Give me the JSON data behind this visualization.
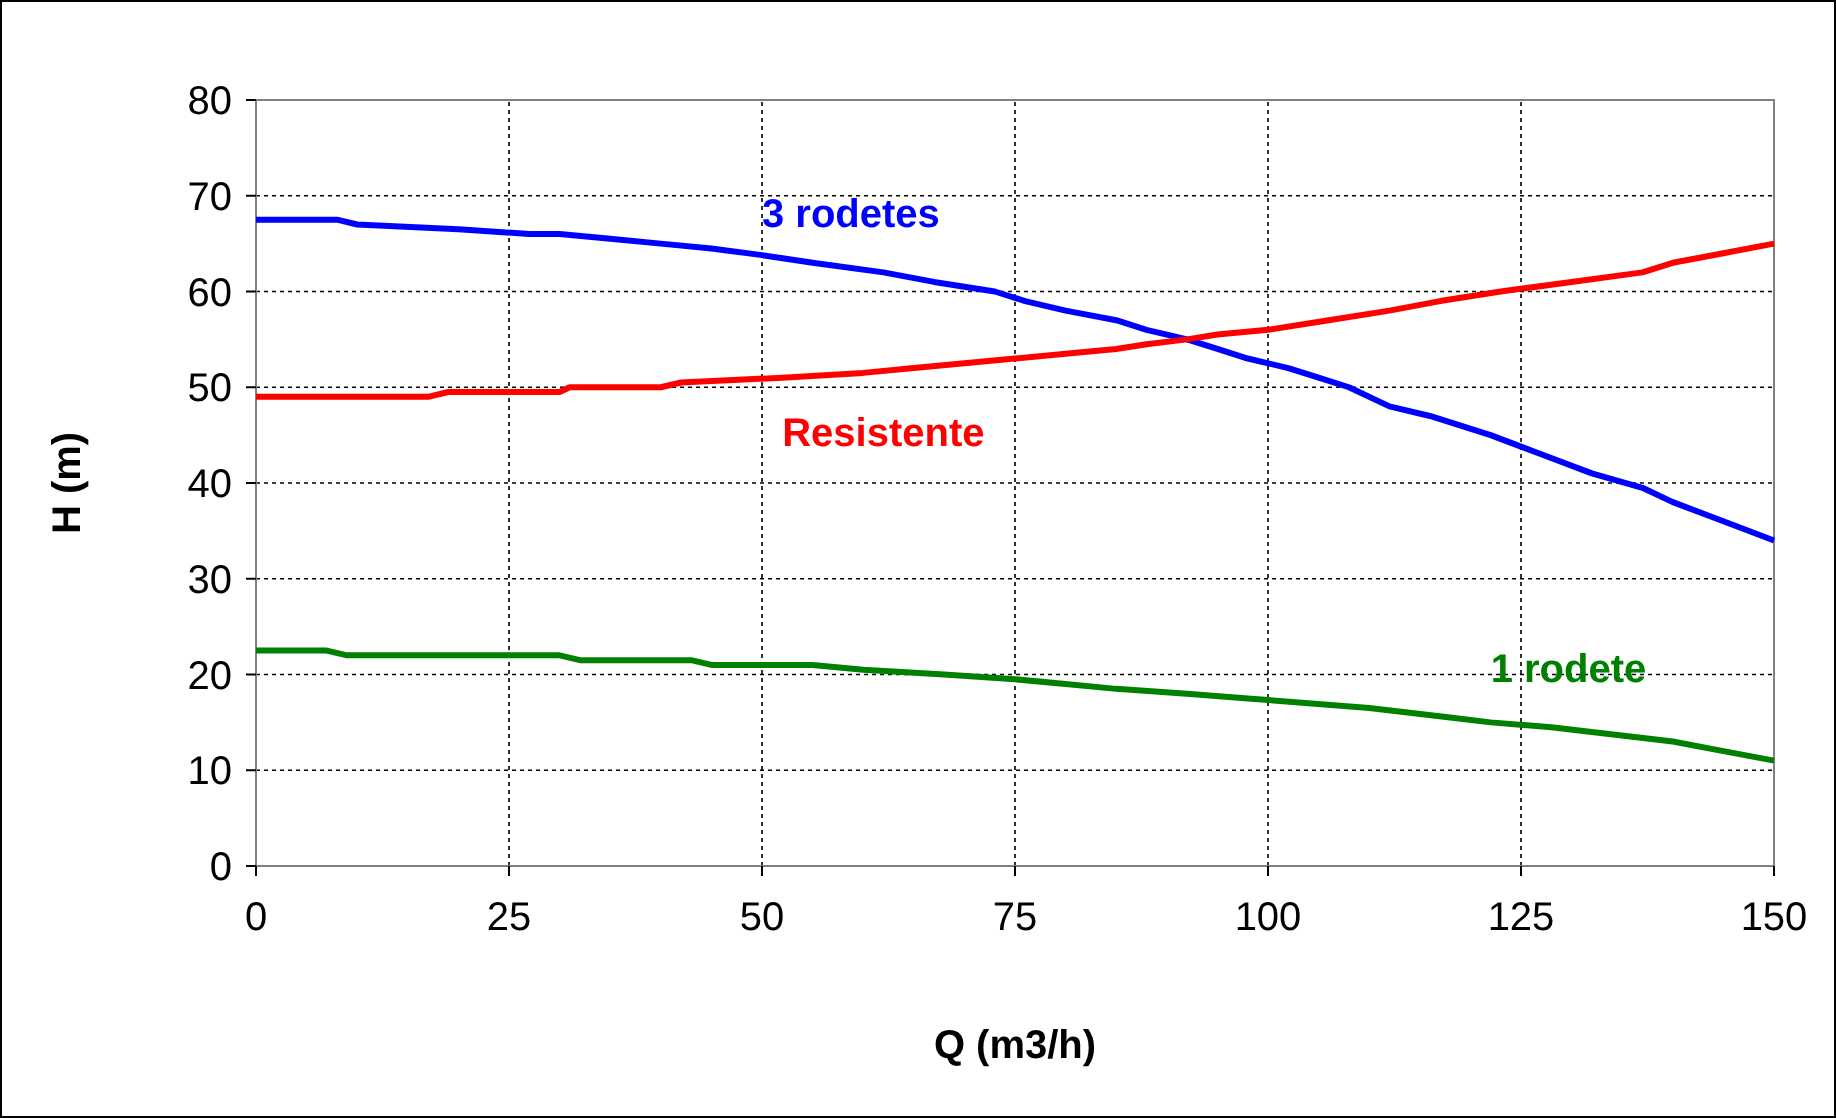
{
  "chart_data": {
    "type": "line",
    "xlabel": "Q (m3/h)",
    "ylabel": "H (m)",
    "xlim": [
      0,
      150
    ],
    "ylim": [
      0,
      80
    ],
    "xticks": [
      0,
      25,
      50,
      75,
      100,
      125,
      150
    ],
    "yticks": [
      0,
      10,
      20,
      30,
      40,
      50,
      60,
      70,
      80
    ],
    "grid": true,
    "marker": "none",
    "line_style": "solid",
    "series": [
      {
        "name": "3 rodetes",
        "color": "#0000ff",
        "x": [
          0,
          8,
          10,
          20,
          27,
          30,
          35,
          40,
          45,
          50,
          55,
          62,
          67,
          73,
          76,
          80,
          85,
          88,
          92,
          95,
          98,
          102,
          105,
          108,
          112,
          116,
          122,
          127,
          132,
          137,
          140,
          145,
          150
        ],
        "values": [
          67.5,
          67.5,
          67,
          66.5,
          66,
          66,
          65.5,
          65,
          64.5,
          63.8,
          63,
          62,
          61,
          60,
          59,
          58,
          57,
          56,
          55,
          54,
          53,
          52,
          51,
          50,
          48,
          47,
          45,
          43,
          41,
          39.5,
          38,
          36,
          34
        ]
      },
      {
        "name": "Resistente",
        "color": "#ff0000",
        "x": [
          0,
          17,
          19,
          30,
          31,
          40,
          42,
          52,
          60,
          65,
          70,
          75,
          80,
          85,
          88,
          92,
          95,
          100,
          106,
          112,
          117,
          123,
          130,
          137,
          140,
          145,
          150
        ],
        "values": [
          49,
          49,
          49.5,
          49.5,
          50,
          50,
          50.5,
          51,
          51.5,
          52,
          52.5,
          53,
          53.5,
          54,
          54.5,
          55,
          55.5,
          56,
          57,
          58,
          59,
          60,
          61,
          62,
          63,
          64,
          65
        ]
      },
      {
        "name": "1 rodete",
        "color": "#008000",
        "x": [
          0,
          7,
          9,
          30,
          32,
          43,
          45,
          55,
          60,
          68,
          75,
          80,
          85,
          92,
          98,
          104,
          110,
          114,
          118,
          122,
          128,
          132,
          136,
          140,
          145,
          150
        ],
        "values": [
          22.5,
          22.5,
          22,
          22,
          21.5,
          21.5,
          21,
          21,
          20.5,
          20,
          19.5,
          19,
          18.5,
          18,
          17.5,
          17,
          16.5,
          16,
          15.5,
          15,
          14.5,
          14,
          13.5,
          13,
          12,
          11
        ]
      }
    ]
  }
}
